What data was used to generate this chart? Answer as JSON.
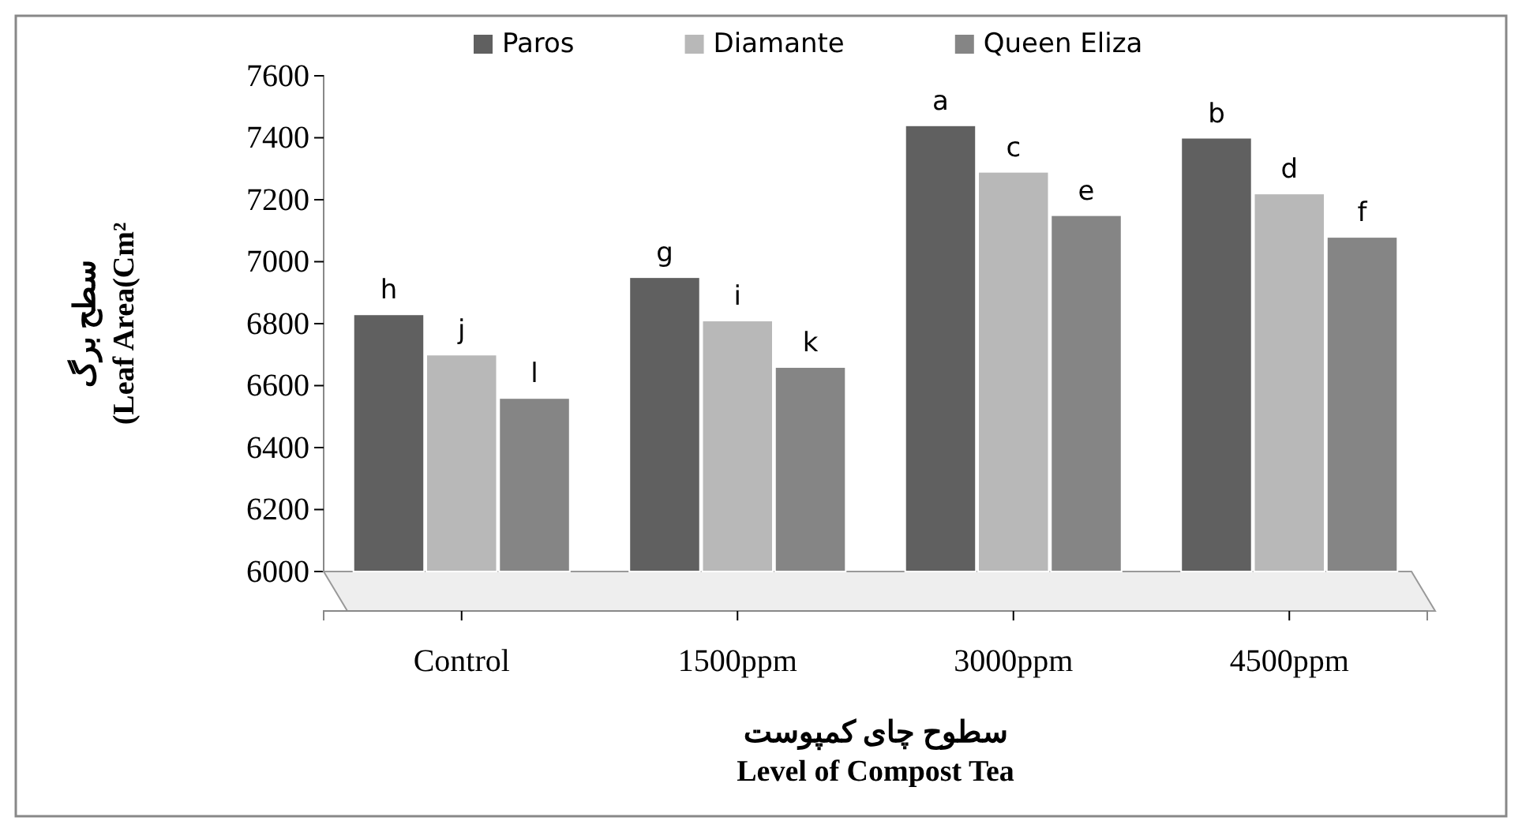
{
  "chart_data": {
    "type": "bar",
    "ylabel": "سطح برگ\n(Leaf Area(Cm²",
    "xlabel": "سطوح چای کمپوست\nLevel of Compost Tea",
    "categories": [
      "Control",
      "1500ppm",
      "3000ppm",
      "4500ppm"
    ],
    "series": [
      {
        "name": "Paros",
        "color": "#606060",
        "values": [
          6830,
          6950,
          7440,
          7400
        ],
        "value_labels": [
          "h",
          "g",
          "a",
          "b"
        ]
      },
      {
        "name": "Diamante",
        "color": "#b8b8b8",
        "values": [
          6700,
          6810,
          7290,
          7220
        ],
        "value_labels": [
          "j",
          "i",
          "c",
          "d"
        ]
      },
      {
        "name": "Queen Eliza",
        "color": "#858585",
        "values": [
          6560,
          6660,
          7150,
          7080
        ],
        "value_labels": [
          "l",
          "k",
          "e",
          "f"
        ]
      }
    ],
    "ylim": [
      6000,
      7600
    ],
    "yticks": [
      6000,
      6200,
      6400,
      6600,
      6800,
      7000,
      7200,
      7400,
      7600
    ],
    "legend": "top",
    "grid": false
  }
}
